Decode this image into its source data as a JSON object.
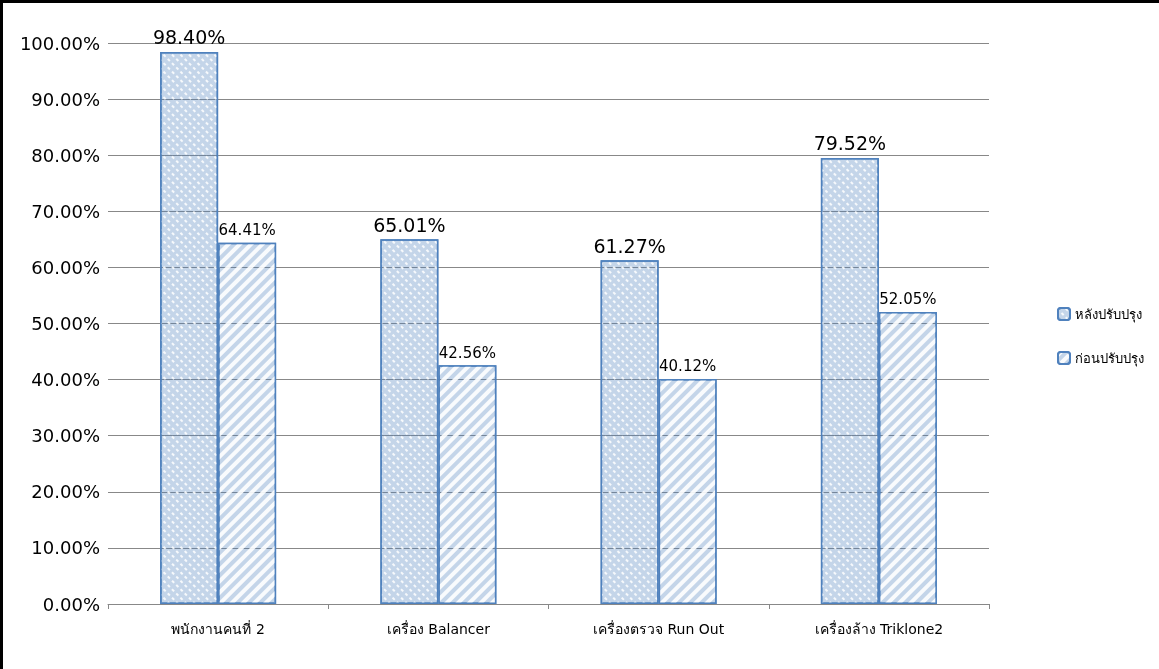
{
  "chart_data": {
    "type": "bar",
    "categories": [
      "พนักงานคนที่ 2",
      "เครื่อง Balancer",
      "เครื่องตรวจ Run Out",
      "เครื่องล้าง Triklone2"
    ],
    "series": [
      {
        "name": "หลังปรับปรุง",
        "color": "#4f81bd",
        "values": [
          98.4,
          65.01,
          61.27,
          79.52
        ],
        "value_labels": [
          "98.40%",
          "65.01%",
          "61.27%",
          "79.52%"
        ]
      },
      {
        "name": "ก่อนปรับปรุง",
        "color": "#4f81bd",
        "values": [
          64.41,
          42.56,
          40.12,
          52.05
        ],
        "value_labels": [
          "64.41%",
          "42.56%",
          "40.12%",
          "52.05%"
        ]
      }
    ],
    "ylim": [
      0,
      100
    ],
    "yticks": [
      {
        "value": 0,
        "label": "0.00%"
      },
      {
        "value": 10,
        "label": "10.00%"
      },
      {
        "value": 20,
        "label": "20.00%"
      },
      {
        "value": 30,
        "label": "30.00%"
      },
      {
        "value": 40,
        "label": "40.00%"
      },
      {
        "value": 50,
        "label": "50.00%"
      },
      {
        "value": 60,
        "label": "60.00%"
      },
      {
        "value": 70,
        "label": "70.00%"
      },
      {
        "value": 80,
        "label": "80.00%"
      },
      {
        "value": 90,
        "label": "90.00%"
      },
      {
        "value": 100,
        "label": "100.00%"
      }
    ],
    "grid": "y",
    "legend": "right"
  }
}
